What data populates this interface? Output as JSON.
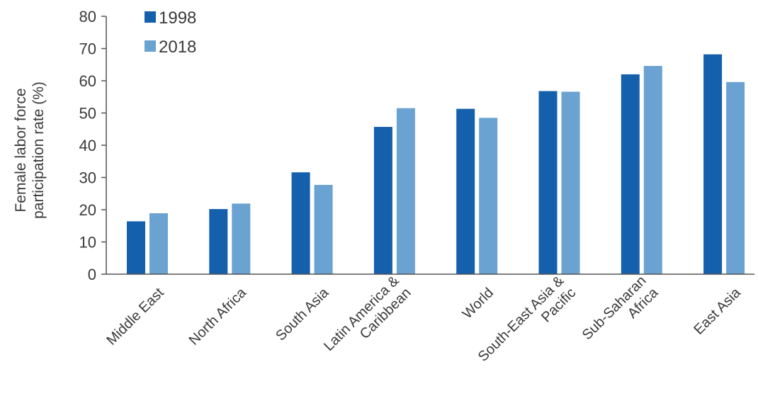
{
  "chart_data": {
    "type": "bar",
    "title": "",
    "xlabel": "",
    "ylabel": "Female labor force participation rate (%)",
    "ylabel_lines": [
      "Female labor force",
      "participation rate (%)"
    ],
    "ylim": [
      0,
      80
    ],
    "yticks": [
      0,
      10,
      20,
      30,
      40,
      50,
      60,
      70,
      80
    ],
    "grid": false,
    "legend_position": "top-left",
    "categories": [
      "Middle East",
      "North Africa",
      "South Asia",
      "Latin America & Caribbean",
      "World",
      "South-East Asia & Pacific",
      "Sub-Saharan Africa",
      "East Asia"
    ],
    "category_lines": [
      [
        "Middle East"
      ],
      [
        "North Africa"
      ],
      [
        "South Asia"
      ],
      [
        "Latin America &",
        "Caribbean"
      ],
      [
        "World"
      ],
      [
        "South-East Asia &",
        "Pacific"
      ],
      [
        "Sub-Saharan",
        "Africa"
      ],
      [
        "East Asia"
      ]
    ],
    "series": [
      {
        "name": "1998",
        "color": "#1560ad",
        "values": [
          16.4,
          20.2,
          31.6,
          45.7,
          51.3,
          56.8,
          62.0,
          68.2
        ]
      },
      {
        "name": "2018",
        "color": "#6aa2d2",
        "values": [
          18.9,
          21.9,
          27.7,
          51.5,
          48.5,
          56.6,
          64.6,
          59.6
        ]
      }
    ]
  }
}
